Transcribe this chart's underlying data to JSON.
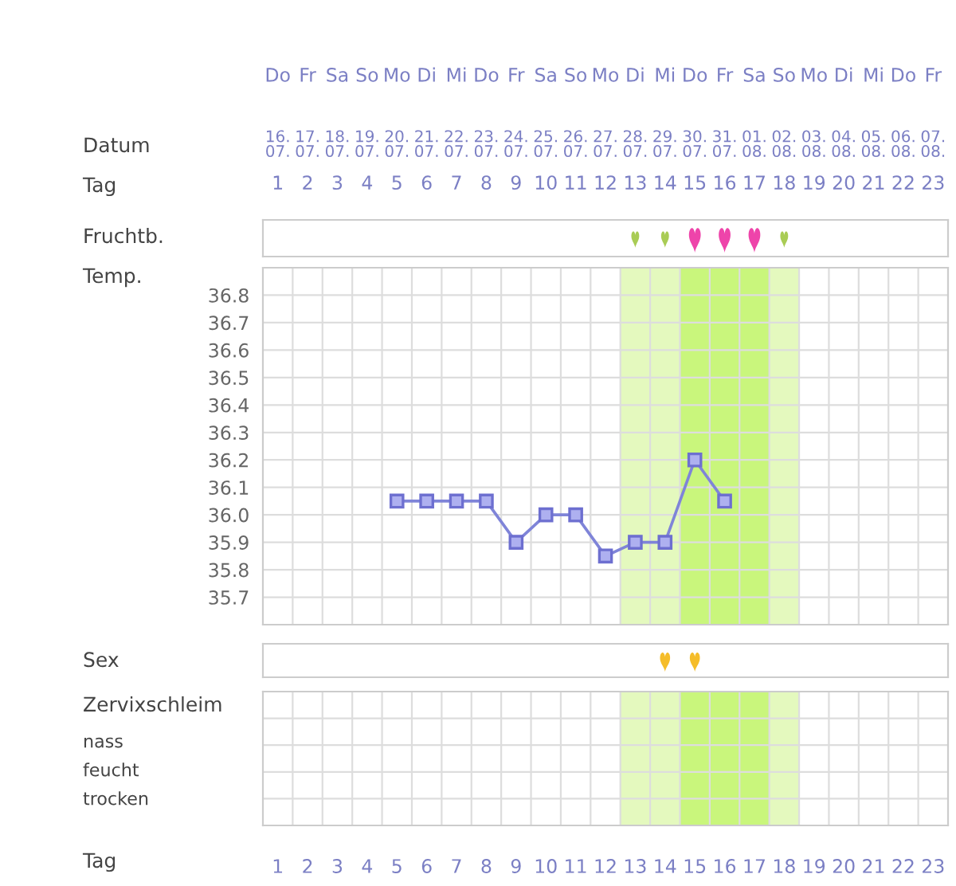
{
  "chart_data": {
    "type": "line",
    "xlabel": "Tag",
    "ylabel": "Temp.",
    "categories": [
      "1",
      "2",
      "3",
      "4",
      "5",
      "6",
      "7",
      "8",
      "9",
      "10",
      "11",
      "12",
      "13",
      "14",
      "15",
      "16",
      "17",
      "18",
      "19",
      "20",
      "21",
      "22",
      "23"
    ],
    "values": [
      null,
      null,
      null,
      null,
      36.05,
      36.05,
      36.05,
      36.05,
      35.9,
      36.0,
      36.0,
      35.85,
      35.9,
      35.9,
      36.2,
      36.05,
      null,
      null,
      null,
      null,
      null,
      null,
      null
    ],
    "color": "#7f84d8",
    "marker": "square",
    "line_style": "solid",
    "ylim": [
      35.6,
      36.9
    ],
    "yticks": [
      35.7,
      35.8,
      35.9,
      {
        "value": 36.0,
        "label": "36.0"
      },
      36.1,
      36.2,
      36.3,
      36.4,
      36.5,
      36.6,
      36.7,
      36.8
    ],
    "grid": true,
    "bands": [
      {
        "axis": "x",
        "from": "13",
        "to": "14",
        "color": "#e4f9be"
      },
      {
        "axis": "x",
        "from": "15",
        "to": "17",
        "color": "#c9f67c"
      },
      {
        "axis": "x",
        "from": "18",
        "to": "18",
        "color": "#e4f9be"
      }
    ],
    "annotations": [
      "Datum",
      "Fruchtb.",
      "Sex",
      "Zervixschleim",
      "nass",
      "feucht",
      "trocken",
      "Do",
      "Fr",
      "Sa",
      "So",
      "Mo",
      "Di",
      "Mi",
      "Do",
      "Fr",
      "Sa",
      "So",
      "Mo",
      "Di",
      "Mi",
      "Do",
      "Fr",
      "Sa",
      "So",
      "Mo",
      "Di",
      "Mi",
      "Do",
      "Fr",
      "16.\n07.",
      "17.\n07.",
      "18.\n07.",
      "19.\n07.",
      "20.\n07.",
      "21.\n07.",
      "22.\n07.",
      "23.\n07.",
      "24.\n07.",
      "25.\n07.",
      "26.\n07.",
      "27.\n07.",
      "28.\n07.",
      "29.\n07.",
      "30.\n07.",
      "31.\n07.",
      "01.\n08.",
      "02.\n08.",
      "03.\n08.",
      "04.\n08.",
      "05.\n08.",
      "06.\n08.",
      "07.\n08."
    ]
  }
}
